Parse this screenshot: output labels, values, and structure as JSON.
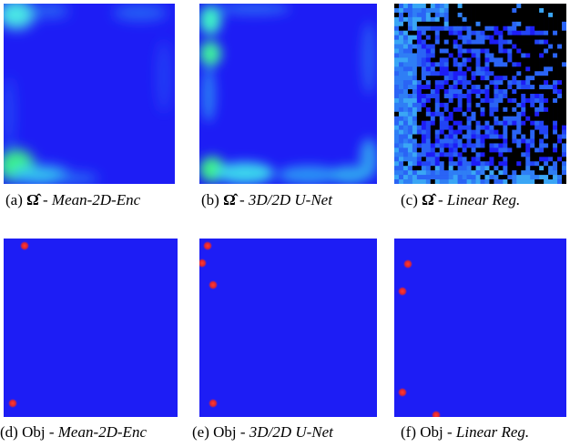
{
  "colors": {
    "field_blue": "#1d1df5",
    "highlight_cyan": "#3ddcf0",
    "highlight_green": "#3df28a",
    "mask_black": "#000000",
    "object_marker_red": "#e1252f"
  },
  "panels": [
    {
      "id": "a",
      "kind": "heatmap",
      "caption": {
        "tag": "(a)",
        "symbol": "Ω̂",
        "sep": "-",
        "method": "Mean-2D-Enc"
      }
    },
    {
      "id": "b",
      "kind": "heatmap",
      "caption": {
        "tag": "(b)",
        "symbol": "Ω̂",
        "sep": "-",
        "method": "3D/2D U-Net"
      }
    },
    {
      "id": "c",
      "kind": "heatmap",
      "caption": {
        "tag": "(c)",
        "symbol": "Ω̂",
        "sep": "-",
        "method": "Linear Reg."
      }
    },
    {
      "id": "d",
      "kind": "object_map",
      "caption": {
        "tag": "(d)",
        "symbol": "Obj",
        "sep": "-",
        "method": "Mean-2D-Enc"
      },
      "object_count": 2
    },
    {
      "id": "e",
      "kind": "object_map",
      "caption": {
        "tag": "(e)",
        "symbol": "Obj",
        "sep": "-",
        "method": "3D/2D U-Net"
      },
      "object_count": 4
    },
    {
      "id": "f",
      "kind": "object_map",
      "caption": {
        "tag": "(f)",
        "symbol": "Obj",
        "sep": "-",
        "method": "Linear Reg."
      },
      "object_count": 4
    }
  ]
}
